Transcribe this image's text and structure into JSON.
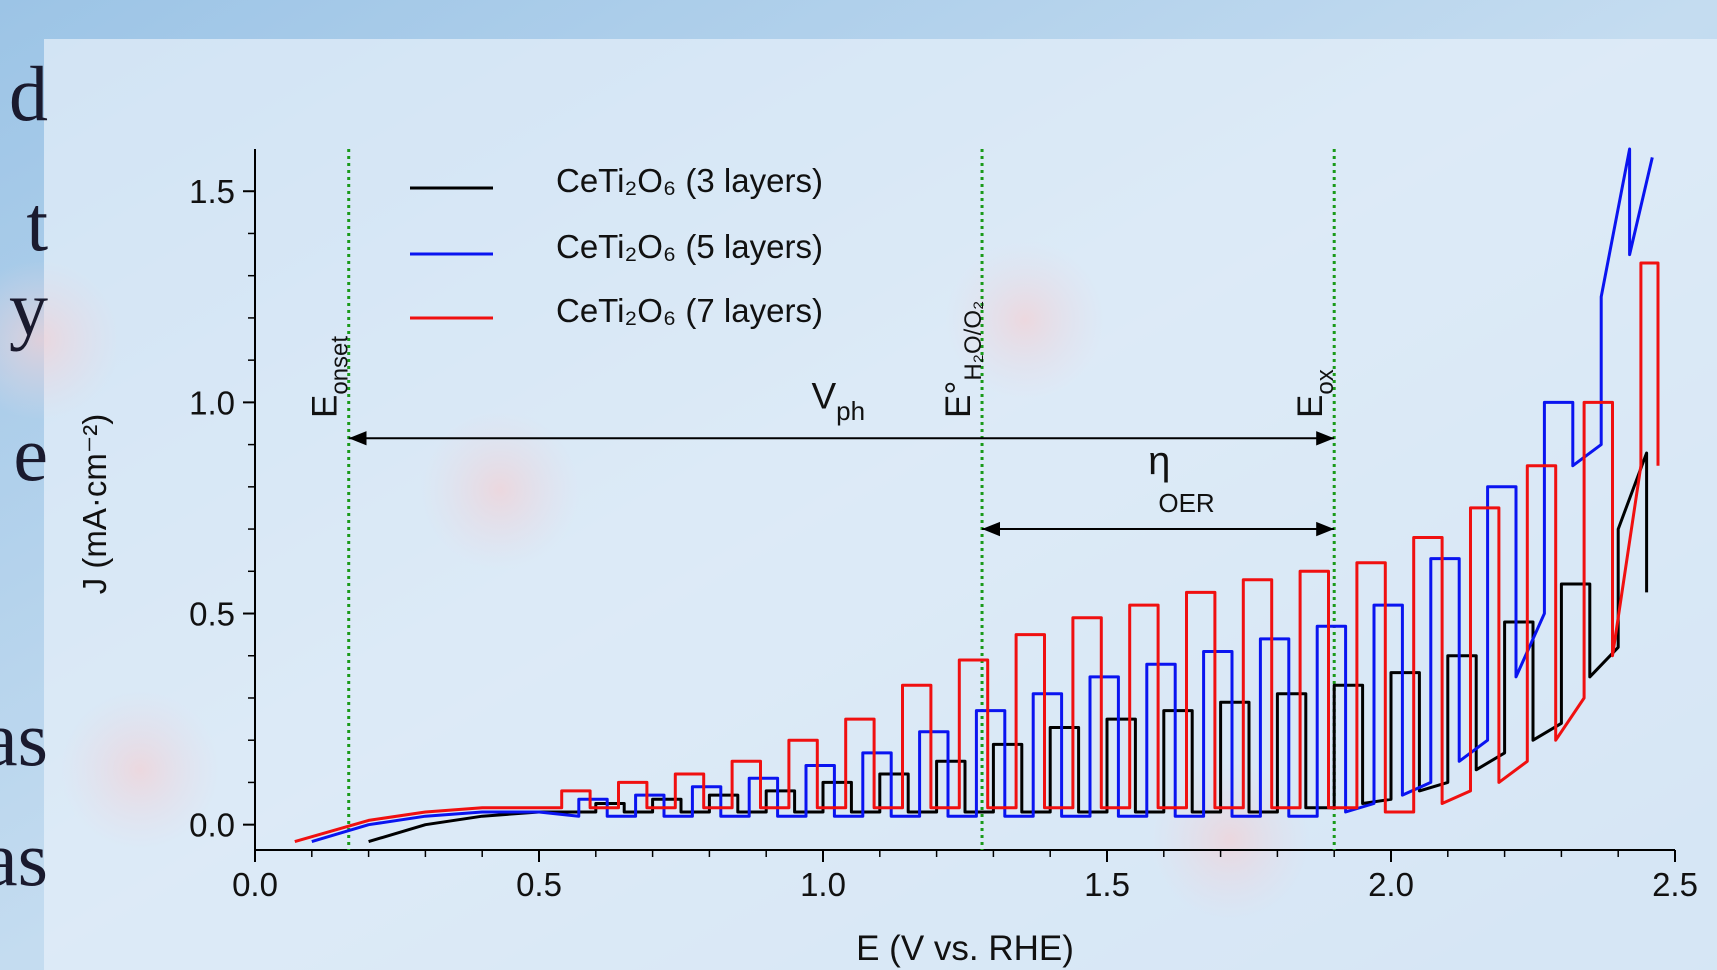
{
  "slide_text": [
    "d",
    "t",
    "y",
    "e",
    "as",
    "as"
  ],
  "chart_data": {
    "type": "line",
    "xlabel": "E (V vs. RHE)",
    "ylabel": "J (mA·cm⁻²)",
    "xlim": [
      0,
      2.5
    ],
    "ylim": [
      -0.06,
      1.6
    ],
    "xticks": [
      {
        "value": 0,
        "label": "0.0"
      },
      0.5,
      {
        "value": 1,
        "label": "1.0"
      },
      1.5,
      {
        "value": 2,
        "label": "2.0"
      },
      2.5
    ],
    "yticks": [
      {
        "value": 0,
        "label": "0.0"
      },
      0.5,
      {
        "value": 1,
        "label": "1.0"
      },
      1.5
    ],
    "xminorticks": [
      0.1,
      0.2,
      0.3,
      0.4,
      0.6,
      0.7,
      0.8,
      0.9,
      1.1,
      1.2,
      1.3,
      1.4,
      1.6,
      1.7,
      1.8,
      1.9,
      2.1,
      2.2,
      2.3,
      2.4
    ],
    "yminorticks": [
      0.1,
      0.2,
      0.3,
      0.4,
      0.6,
      0.7,
      0.8,
      0.9,
      1.1,
      1.2,
      1.3,
      1.4
    ],
    "legend": "upper left",
    "markers": [
      {
        "x": 0.165,
        "label": "E",
        "sub": "onset"
      },
      {
        "x": 1.28,
        "label": "E°",
        "sub": "H₂O/O₂"
      },
      {
        "x": 1.9,
        "label": "E",
        "sub": "ox"
      }
    ],
    "marker_color": "#1a9a1a",
    "arrows": [
      {
        "label": "V",
        "sub": "ph",
        "x": [
          0.165,
          1.9
        ],
        "y": 0.915
      },
      {
        "label": "η",
        "sub": "OER",
        "x": [
          1.28,
          1.9
        ],
        "y": 0.7
      }
    ],
    "series": [
      {
        "name": "CeTi₂O₆ (3 layers)",
        "color": "#000000",
        "x": [
          0.2,
          0.3,
          0.4,
          0.5,
          0.6,
          0.6,
          0.65,
          0.65,
          0.7,
          0.7,
          0.75,
          0.75,
          0.8,
          0.8,
          0.85,
          0.85,
          0.9,
          0.9,
          0.95,
          0.95,
          1.0,
          1.0,
          1.05,
          1.05,
          1.1,
          1.1,
          1.15,
          1.15,
          1.2,
          1.2,
          1.25,
          1.25,
          1.3,
          1.3,
          1.35,
          1.35,
          1.4,
          1.4,
          1.45,
          1.45,
          1.5,
          1.5,
          1.55,
          1.55,
          1.6,
          1.6,
          1.65,
          1.65,
          1.7,
          1.7,
          1.75,
          1.75,
          1.8,
          1.8,
          1.85,
          1.85,
          1.9,
          1.9,
          1.95,
          1.95,
          2.0,
          2.0,
          2.05,
          2.05,
          2.1,
          2.1,
          2.15,
          2.15,
          2.2,
          2.2,
          2.25,
          2.25,
          2.3,
          2.3,
          2.35,
          2.35,
          2.4,
          2.4,
          2.45,
          2.45
        ],
        "values": [
          -0.04,
          0,
          0.02,
          0.03,
          0.03,
          0.05,
          0.05,
          0.03,
          0.03,
          0.06,
          0.06,
          0.03,
          0.03,
          0.07,
          0.07,
          0.03,
          0.03,
          0.08,
          0.08,
          0.03,
          0.03,
          0.1,
          0.1,
          0.03,
          0.03,
          0.12,
          0.12,
          0.03,
          0.03,
          0.15,
          0.15,
          0.03,
          0.03,
          0.19,
          0.19,
          0.03,
          0.03,
          0.23,
          0.23,
          0.03,
          0.03,
          0.25,
          0.25,
          0.03,
          0.03,
          0.27,
          0.27,
          0.03,
          0.03,
          0.29,
          0.29,
          0.03,
          0.03,
          0.31,
          0.31,
          0.04,
          0.04,
          0.33,
          0.33,
          0.05,
          0.06,
          0.36,
          0.36,
          0.08,
          0.1,
          0.4,
          0.4,
          0.13,
          0.17,
          0.48,
          0.48,
          0.2,
          0.24,
          0.57,
          0.57,
          0.35,
          0.42,
          0.7,
          0.88,
          0.55
        ]
      },
      {
        "name": "CeTi₂O₆ (5 layers)",
        "color": "#0a14f0",
        "x": [
          0.1,
          0.2,
          0.3,
          0.4,
          0.5,
          0.57,
          0.57,
          0.62,
          0.62,
          0.67,
          0.67,
          0.72,
          0.72,
          0.77,
          0.77,
          0.82,
          0.82,
          0.87,
          0.87,
          0.92,
          0.92,
          0.97,
          0.97,
          1.02,
          1.02,
          1.07,
          1.07,
          1.12,
          1.12,
          1.17,
          1.17,
          1.22,
          1.22,
          1.27,
          1.27,
          1.32,
          1.32,
          1.37,
          1.37,
          1.42,
          1.42,
          1.47,
          1.47,
          1.52,
          1.52,
          1.57,
          1.57,
          1.62,
          1.62,
          1.67,
          1.67,
          1.72,
          1.72,
          1.77,
          1.77,
          1.82,
          1.82,
          1.87,
          1.87,
          1.92,
          1.92,
          1.97,
          1.97,
          2.02,
          2.02,
          2.07,
          2.07,
          2.12,
          2.12,
          2.17,
          2.17,
          2.22,
          2.22,
          2.27,
          2.27,
          2.32,
          2.32,
          2.37,
          2.37,
          2.42,
          2.42,
          2.46
        ],
        "values": [
          -0.04,
          0,
          0.02,
          0.03,
          0.03,
          0.02,
          0.06,
          0.06,
          0.02,
          0.02,
          0.07,
          0.07,
          0.02,
          0.02,
          0.09,
          0.09,
          0.02,
          0.02,
          0.11,
          0.11,
          0.02,
          0.02,
          0.14,
          0.14,
          0.02,
          0.02,
          0.17,
          0.17,
          0.02,
          0.02,
          0.22,
          0.22,
          0.02,
          0.02,
          0.27,
          0.27,
          0.02,
          0.02,
          0.31,
          0.31,
          0.02,
          0.02,
          0.35,
          0.35,
          0.02,
          0.02,
          0.38,
          0.38,
          0.02,
          0.02,
          0.41,
          0.41,
          0.02,
          0.02,
          0.44,
          0.44,
          0.02,
          0.02,
          0.47,
          0.47,
          0.03,
          0.05,
          0.52,
          0.52,
          0.07,
          0.1,
          0.63,
          0.63,
          0.15,
          0.2,
          0.8,
          0.8,
          0.35,
          0.5,
          1.0,
          1.0,
          0.85,
          0.9,
          1.25,
          1.6,
          1.35,
          1.58
        ]
      },
      {
        "name": "CeTi₂O₆ (7 layers)",
        "color": "#f01010",
        "x": [
          0.07,
          0.2,
          0.3,
          0.4,
          0.54,
          0.54,
          0.59,
          0.59,
          0.64,
          0.64,
          0.69,
          0.69,
          0.74,
          0.74,
          0.79,
          0.79,
          0.84,
          0.84,
          0.89,
          0.89,
          0.94,
          0.94,
          0.99,
          0.99,
          1.04,
          1.04,
          1.09,
          1.09,
          1.14,
          1.14,
          1.19,
          1.19,
          1.24,
          1.24,
          1.29,
          1.29,
          1.34,
          1.34,
          1.39,
          1.39,
          1.44,
          1.44,
          1.49,
          1.49,
          1.54,
          1.54,
          1.59,
          1.59,
          1.64,
          1.64,
          1.69,
          1.69,
          1.74,
          1.74,
          1.79,
          1.79,
          1.84,
          1.84,
          1.89,
          1.89,
          1.94,
          1.94,
          1.99,
          1.99,
          2.04,
          2.04,
          2.09,
          2.09,
          2.14,
          2.14,
          2.19,
          2.19,
          2.24,
          2.24,
          2.29,
          2.29,
          2.34,
          2.34,
          2.39,
          2.39,
          2.44,
          2.44,
          2.47,
          2.47
        ],
        "values": [
          -0.04,
          0.01,
          0.03,
          0.04,
          0.04,
          0.08,
          0.08,
          0.04,
          0.04,
          0.1,
          0.1,
          0.04,
          0.04,
          0.12,
          0.12,
          0.04,
          0.04,
          0.15,
          0.15,
          0.04,
          0.04,
          0.2,
          0.2,
          0.04,
          0.04,
          0.25,
          0.25,
          0.04,
          0.04,
          0.33,
          0.33,
          0.04,
          0.04,
          0.39,
          0.39,
          0.04,
          0.04,
          0.45,
          0.45,
          0.04,
          0.04,
          0.49,
          0.49,
          0.04,
          0.04,
          0.52,
          0.52,
          0.04,
          0.04,
          0.55,
          0.55,
          0.04,
          0.04,
          0.58,
          0.58,
          0.04,
          0.04,
          0.6,
          0.6,
          0.04,
          0.04,
          0.62,
          0.62,
          0.03,
          0.03,
          0.68,
          0.68,
          0.05,
          0.08,
          0.75,
          0.75,
          0.1,
          0.15,
          0.85,
          0.85,
          0.2,
          0.3,
          1.0,
          1.0,
          0.4,
          0.85,
          1.33,
          1.33,
          0.85
        ]
      }
    ]
  }
}
